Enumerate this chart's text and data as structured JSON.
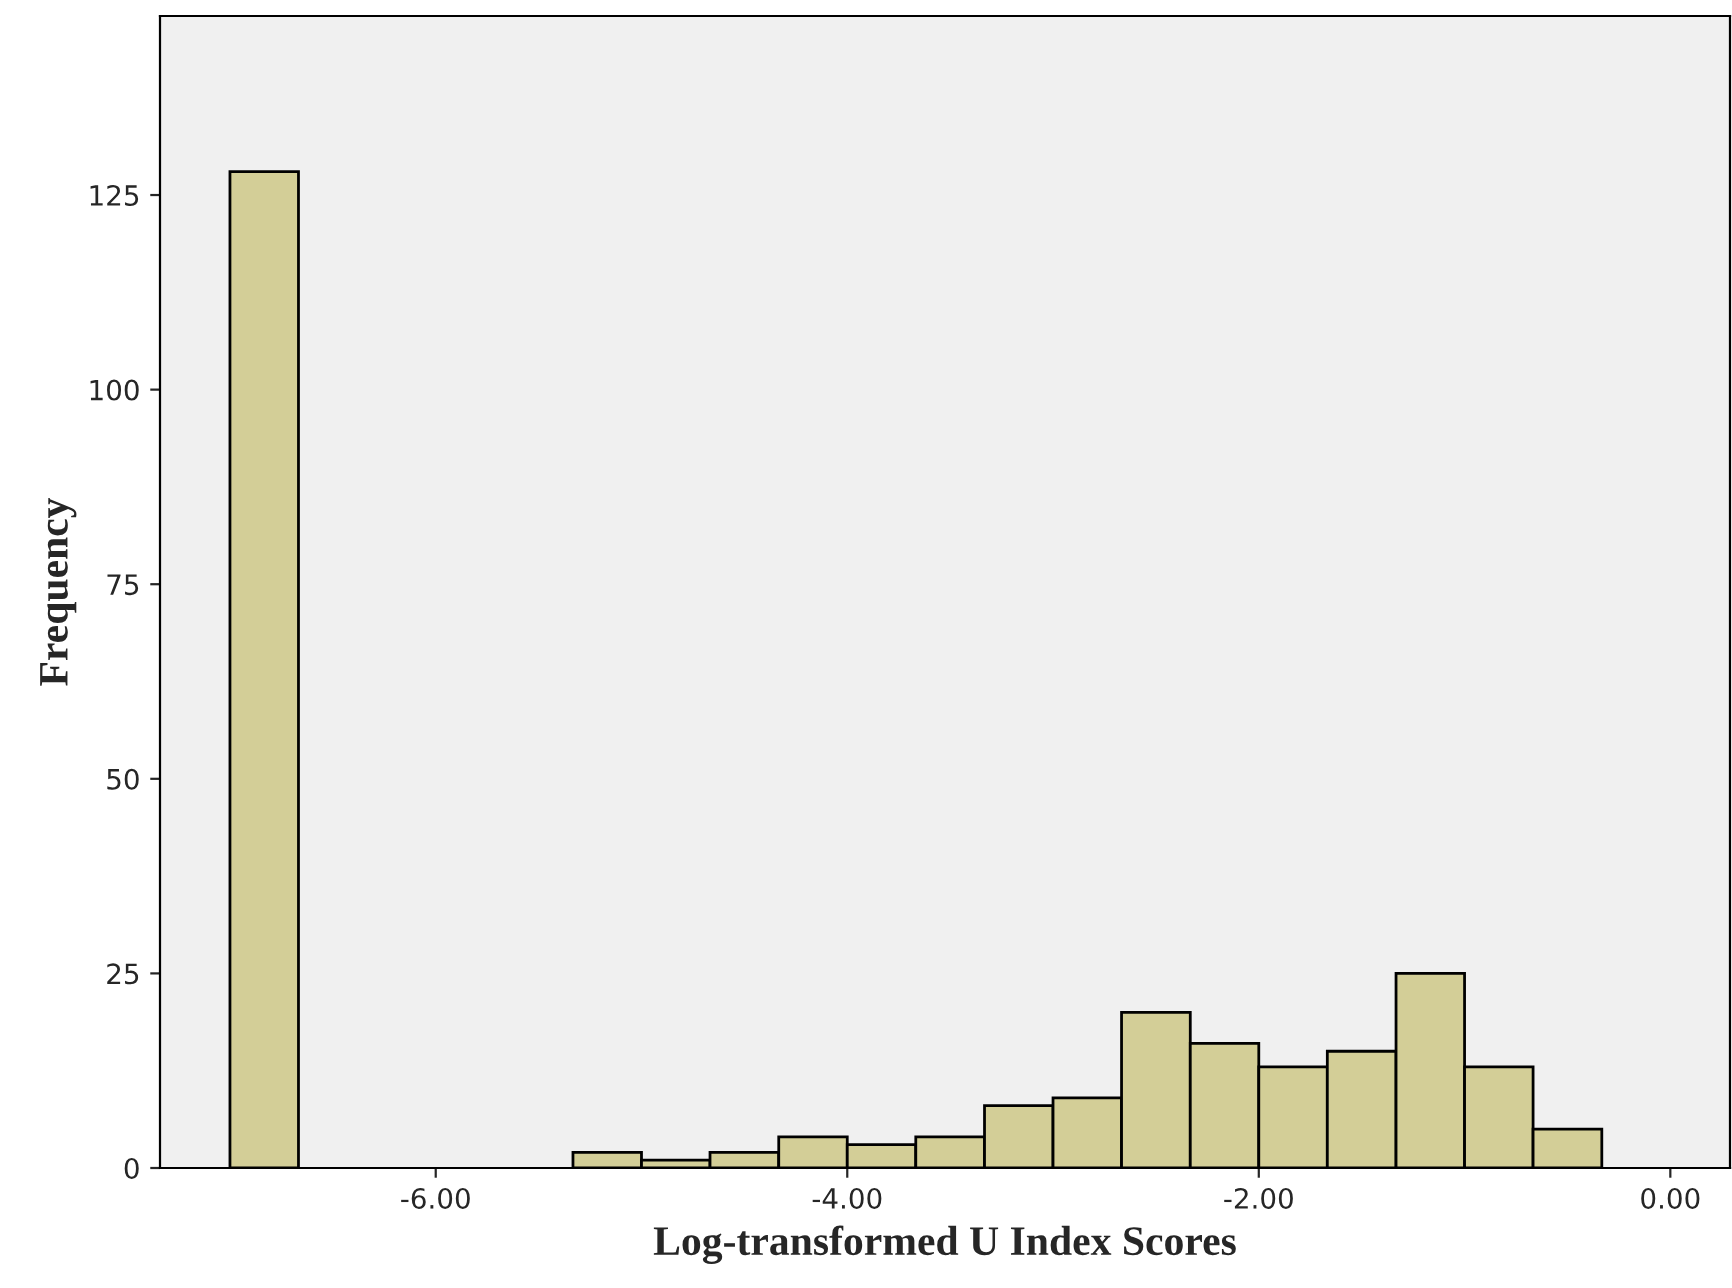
{
  "chart_data": {
    "type": "histogram",
    "xlabel": "Log-transformed U Index Scores",
    "ylabel": "Frequency",
    "bins": [
      -7,
      -6.667,
      -6.333,
      -6,
      -5.667,
      -5.333,
      -5,
      -4.667,
      -4.333,
      -4,
      -3.667,
      -3.333,
      -3,
      -2.667,
      -2.333,
      -2,
      -1.667,
      -1.333,
      -1,
      -0.667,
      -0.333
    ],
    "values": [
      128,
      0,
      0,
      0,
      0,
      2,
      1,
      2,
      4,
      3,
      4,
      8,
      9,
      20,
      16,
      13,
      15,
      25,
      13,
      5
    ],
    "color": "#d3ce97",
    "xlim": [
      -7.34,
      0.29
    ],
    "ylim": [
      0,
      148
    ],
    "xticks": [
      {
        "value": -6,
        "label": "-6.00"
      },
      {
        "value": -4,
        "label": "-4.00"
      },
      {
        "value": -2,
        "label": "-2.00"
      },
      {
        "value": 0,
        "label": "0.00"
      }
    ],
    "yticks": [
      0,
      25,
      50,
      75,
      100,
      125
    ],
    "grid": false
  }
}
